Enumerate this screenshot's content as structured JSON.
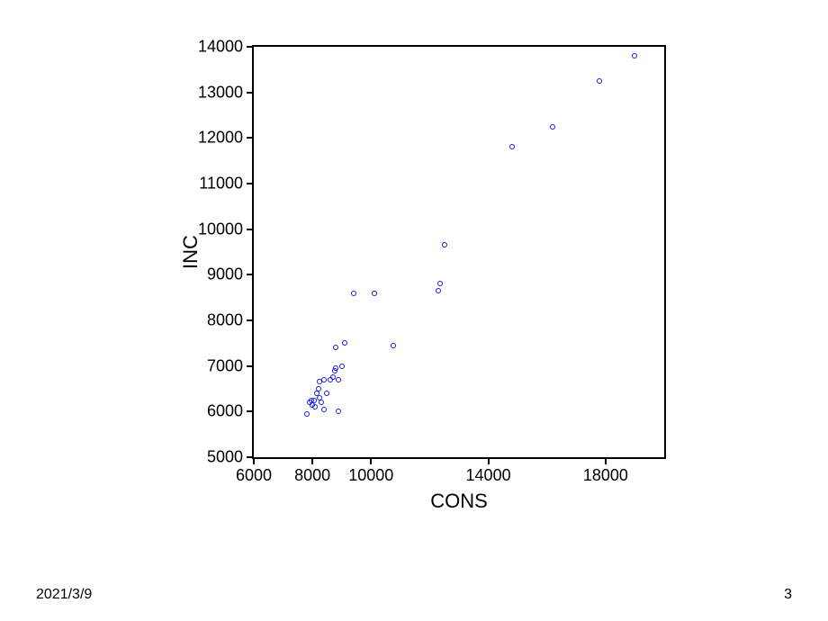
{
  "footer": {
    "date": "2021/3/9",
    "page_number": "3",
    "fontsize": 16,
    "color": "#000000"
  },
  "chart": {
    "type": "scatter",
    "xlabel": "CONS",
    "ylabel": "INC",
    "label_fontsize": 22,
    "tick_fontsize": 18,
    "axis_color": "#000000",
    "background_color": "#ffffff",
    "border_width": 2,
    "xlim": [
      6000,
      20000
    ],
    "ylim": [
      5000,
      14000
    ],
    "xticks": [
      6000,
      8000,
      10000,
      14000,
      18000
    ],
    "yticks": [
      5000,
      6000,
      7000,
      8000,
      9000,
      10000,
      11000,
      12000,
      13000,
      14000
    ],
    "tick_length": 8,
    "marker": {
      "shape": "circle",
      "size": 6,
      "stroke": "#1818f0",
      "fill": "transparent",
      "stroke_width": 1
    },
    "points": [
      [
        7800,
        5950
      ],
      [
        7900,
        6200
      ],
      [
        7950,
        6250
      ],
      [
        8000,
        6150
      ],
      [
        8050,
        6250
      ],
      [
        8100,
        6100
      ],
      [
        8150,
        6400
      ],
      [
        8200,
        6500
      ],
      [
        8250,
        6300
      ],
      [
        8250,
        6650
      ],
      [
        8300,
        6200
      ],
      [
        8400,
        6700
      ],
      [
        8400,
        6050
      ],
      [
        8500,
        6400
      ],
      [
        8600,
        6700
      ],
      [
        8700,
        6750
      ],
      [
        8750,
        6900
      ],
      [
        8800,
        6950
      ],
      [
        8800,
        7400
      ],
      [
        8900,
        6700
      ],
      [
        8900,
        6000
      ],
      [
        9000,
        7000
      ],
      [
        9100,
        7500
      ],
      [
        9400,
        8600
      ],
      [
        10100,
        8600
      ],
      [
        10750,
        7450
      ],
      [
        12300,
        8650
      ],
      [
        12350,
        8800
      ],
      [
        12500,
        9650
      ],
      [
        14800,
        11800
      ],
      [
        16200,
        12250
      ],
      [
        17800,
        13250
      ],
      [
        19000,
        13800
      ]
    ]
  }
}
